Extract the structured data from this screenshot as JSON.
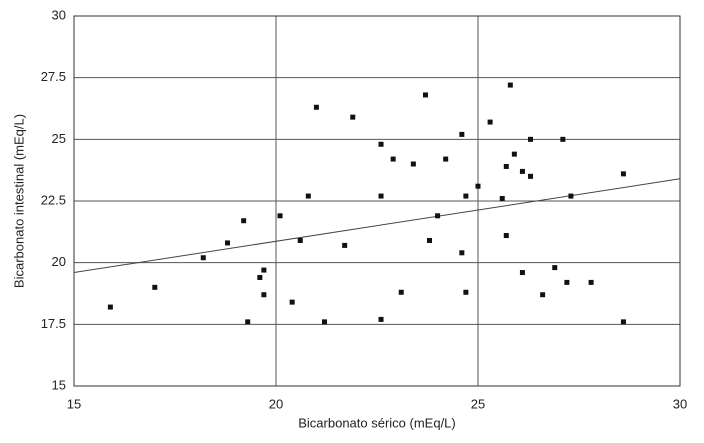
{
  "chart_data": {
    "type": "scatter",
    "x_label": "Bicarbonato sérico (mEq/L)",
    "y_label": "Bicarbonato intestinal (mEq/L)",
    "xlim": [
      15,
      30
    ],
    "xticks": [
      15,
      20,
      25,
      30
    ],
    "ylim": [
      15,
      30
    ],
    "yticks": [
      15,
      17.5,
      20,
      22.5,
      25,
      27.5,
      30
    ],
    "grid": true,
    "color": "#111111",
    "x": [
      15.9,
      17.0,
      18.2,
      18.8,
      19.2,
      19.3,
      19.6,
      19.7,
      19.7,
      20.1,
      20.4,
      20.6,
      20.8,
      21.0,
      21.2,
      21.7,
      21.9,
      22.6,
      22.6,
      22.6,
      22.9,
      23.1,
      23.4,
      23.7,
      23.8,
      24.0,
      24.2,
      24.6,
      24.6,
      24.7,
      24.7,
      25.0,
      25.3,
      25.6,
      25.7,
      25.7,
      25.8,
      25.9,
      26.1,
      26.1,
      26.3,
      26.3,
      26.6,
      26.9,
      27.1,
      27.2,
      27.3,
      27.8,
      28.6,
      28.6
    ],
    "y": [
      18.2,
      19.0,
      20.2,
      20.8,
      21.7,
      17.6,
      19.4,
      19.7,
      18.7,
      21.9,
      18.4,
      20.9,
      22.7,
      26.3,
      17.6,
      20.7,
      25.9,
      24.8,
      22.7,
      17.7,
      24.2,
      18.8,
      24.0,
      26.8,
      20.9,
      21.9,
      24.2,
      25.2,
      20.4,
      22.7,
      18.8,
      23.1,
      25.7,
      22.6,
      23.9,
      21.1,
      27.2,
      24.4,
      23.7,
      19.6,
      25.0,
      23.5,
      18.7,
      19.8,
      25.0,
      19.2,
      22.7,
      19.2,
      23.6,
      17.6
    ],
    "trendline": {
      "x": [
        15,
        30
      ],
      "y": [
        19.6,
        23.4
      ],
      "color": "#444444"
    }
  }
}
